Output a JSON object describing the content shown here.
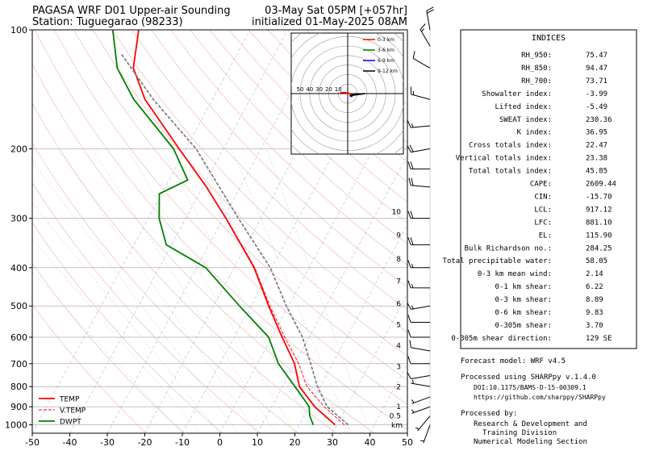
{
  "chart_data": {
    "type": "skewt",
    "title_left": [
      "PAGASA WRF D01 Upper-air Sounding",
      "Station: Tuguegarao (98233)"
    ],
    "title_right": [
      "03-May Sat 05PM [+057hr]",
      "initialized 01-May-2025 08AM"
    ],
    "xlim": [
      -50,
      50
    ],
    "xticks": [
      -50,
      -40,
      -30,
      -20,
      -10,
      0,
      10,
      20,
      30,
      40,
      50
    ],
    "ylim": [
      1050,
      100
    ],
    "yticks": [
      100,
      200,
      300,
      400,
      500,
      600,
      700,
      800,
      900,
      1000
    ],
    "log_y": true,
    "grid": true,
    "legend": "lower left",
    "series": [
      {
        "name": "TEMP",
        "color": "#ff0000",
        "dash": false,
        "width": 1.8,
        "pressure": [
          1000,
          900,
          800,
          700,
          600,
          500,
          400,
          300,
          250,
          200,
          150,
          125,
          100
        ],
        "values": [
          29.5,
          21.5,
          14.5,
          9.9,
          2.8,
          -5.3,
          -14.7,
          -29.3,
          -39,
          -51.8,
          -68,
          -75.6,
          -79.7
        ]
      },
      {
        "name": "V.TEMP",
        "color": "#ff0000",
        "dash": true,
        "width": 0.9,
        "pressure": [
          1000,
          900,
          800,
          700,
          600,
          500,
          400,
          300
        ],
        "values": [
          32,
          24,
          16.5,
          11,
          3.5,
          -5,
          -14.5,
          -29.2
        ]
      },
      {
        "name": "DWPT",
        "color": "#008000",
        "dash": false,
        "width": 1.8,
        "pressure": [
          1000,
          950,
          900,
          850,
          800,
          700,
          600,
          500,
          400,
          350,
          300,
          260,
          240,
          200,
          150,
          125,
          100
        ],
        "values": [
          23.7,
          21.5,
          20,
          16.8,
          13.3,
          5.6,
          -0.8,
          -13.1,
          -27.6,
          -41.4,
          -47.1,
          -50.6,
          -45,
          -53.3,
          -71,
          -79.9,
          -86.6
        ]
      },
      {
        "color": "#808080",
        "dash": true,
        "width": 1.8,
        "pressure": [
          1000,
          900,
          800,
          700,
          600,
          500,
          400,
          300,
          200,
          150,
          115
        ],
        "values": [
          33,
          24.8,
          19.3,
          14.2,
          8.2,
          -0.6,
          -10.4,
          -26,
          -47.3,
          -65.8,
          -80.9
        ]
      }
    ],
    "heights": {
      "unit": "km",
      "values": [
        0.5,
        1,
        2,
        3,
        4,
        5,
        6,
        7,
        8,
        9,
        10
      ],
      "pressure": [
        950,
        900,
        802,
        713,
        631,
        558,
        494,
        433,
        380,
        331,
        289
      ]
    },
    "winds": {
      "pressure": [
        1000,
        950,
        900,
        850,
        800,
        750,
        700,
        650,
        600,
        550,
        500,
        450,
        400,
        350,
        300,
        250,
        225,
        200,
        175,
        150,
        125,
        110,
        100
      ],
      "direction": [
        200,
        220,
        250,
        250,
        280,
        260,
        270,
        280,
        270,
        270,
        260,
        270,
        270,
        270,
        270,
        275,
        270,
        260,
        265,
        285,
        300,
        330,
        350
      ],
      "speed": [
        5,
        5,
        5,
        5,
        5,
        10,
        10,
        10,
        10,
        10,
        15,
        15,
        15,
        20,
        20,
        20,
        20,
        20,
        15,
        15,
        10,
        15,
        20
      ]
    },
    "hodograph": {
      "rings": [
        10,
        20,
        30,
        40,
        50
      ],
      "series": [
        {
          "name": "0-3 km",
          "color": "#ff0000",
          "u": [
            -8,
            -3,
            2,
            5
          ],
          "v": [
            1,
            1,
            0,
            -1
          ]
        },
        {
          "name": "3-6 km",
          "color": "#008000",
          "u": [
            5,
            6
          ],
          "v": [
            -1,
            -1
          ]
        },
        {
          "name": "6-9 km",
          "color": "#0000ff",
          "u": [
            6,
            4,
            2
          ],
          "v": [
            -1,
            -3,
            -2
          ]
        },
        {
          "name": "9-12 km",
          "color": "#000000",
          "u": [
            2,
            10,
            18
          ],
          "v": [
            -2,
            -1,
            0
          ]
        }
      ]
    }
  },
  "indices": {
    "title": "INDICES",
    "rows": [
      [
        "RH_950:",
        "75.47"
      ],
      [
        "RH_850:",
        "94.47"
      ],
      [
        "RH_700:",
        "73.71"
      ],
      [
        "Showalter index:",
        "-3.99"
      ],
      [
        "Lifted index:",
        "-5.49"
      ],
      [
        "SWEAT index:",
        "230.36"
      ],
      [
        "K index:",
        "36.95"
      ],
      [
        "Cross totals index:",
        "22.47"
      ],
      [
        "Vertical totals index:",
        "23.38"
      ],
      [
        "Total totals index:",
        "45.85"
      ],
      [
        "CAPE:",
        "2609.44"
      ],
      [
        "CIN:",
        "-15.70"
      ],
      [
        "LCL:",
        "917.12"
      ],
      [
        "LFC:",
        "881.10"
      ],
      [
        "EL:",
        "115.90"
      ],
      [
        "Bulk Richardson no.:",
        "284.25"
      ],
      [
        "Total precipitable water:",
        "58.05"
      ],
      [
        "0-3 km mean wind:",
        "2.14"
      ],
      [
        "0-1 km shear:",
        "6.22"
      ],
      [
        "0-3 km shear:",
        "8.89"
      ],
      [
        "0-6 km shear:",
        "9.83"
      ],
      [
        "0-305m shear:",
        "3.70"
      ],
      [
        "0-305m shear direction:",
        "129 SE"
      ]
    ]
  },
  "footer": {
    "model": "Forecast model: WRF v4.5",
    "processed": "Processed using SHARPpy v.1.4.0",
    "doi": "DOI:10.1175/BAMS-D-15-00309.1",
    "url": "https://github.com/sharppy/SHARPpy",
    "by": "Processed by:",
    "org": [
      "Research & Development and",
      "Training Division",
      "Numerical Modeling Section"
    ]
  }
}
